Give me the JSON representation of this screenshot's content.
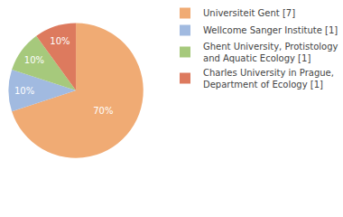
{
  "chart_data": {
    "type": "pie",
    "categories": [
      "Universiteit Gent [7]",
      "Wellcome Sanger Institute [1]",
      "Ghent University, Protistology and Aquatic Ecology [1]",
      "Charles University in Prague, Department of Ecology [1]"
    ],
    "values": [
      70,
      10,
      10,
      10
    ],
    "value_labels": [
      "70%",
      "10%",
      "10%",
      "10%"
    ],
    "colors": [
      "#f0ab74",
      "#a1bae0",
      "#a6c97c",
      "#dd7a5e"
    ],
    "data_labels": true,
    "legend": "right"
  }
}
